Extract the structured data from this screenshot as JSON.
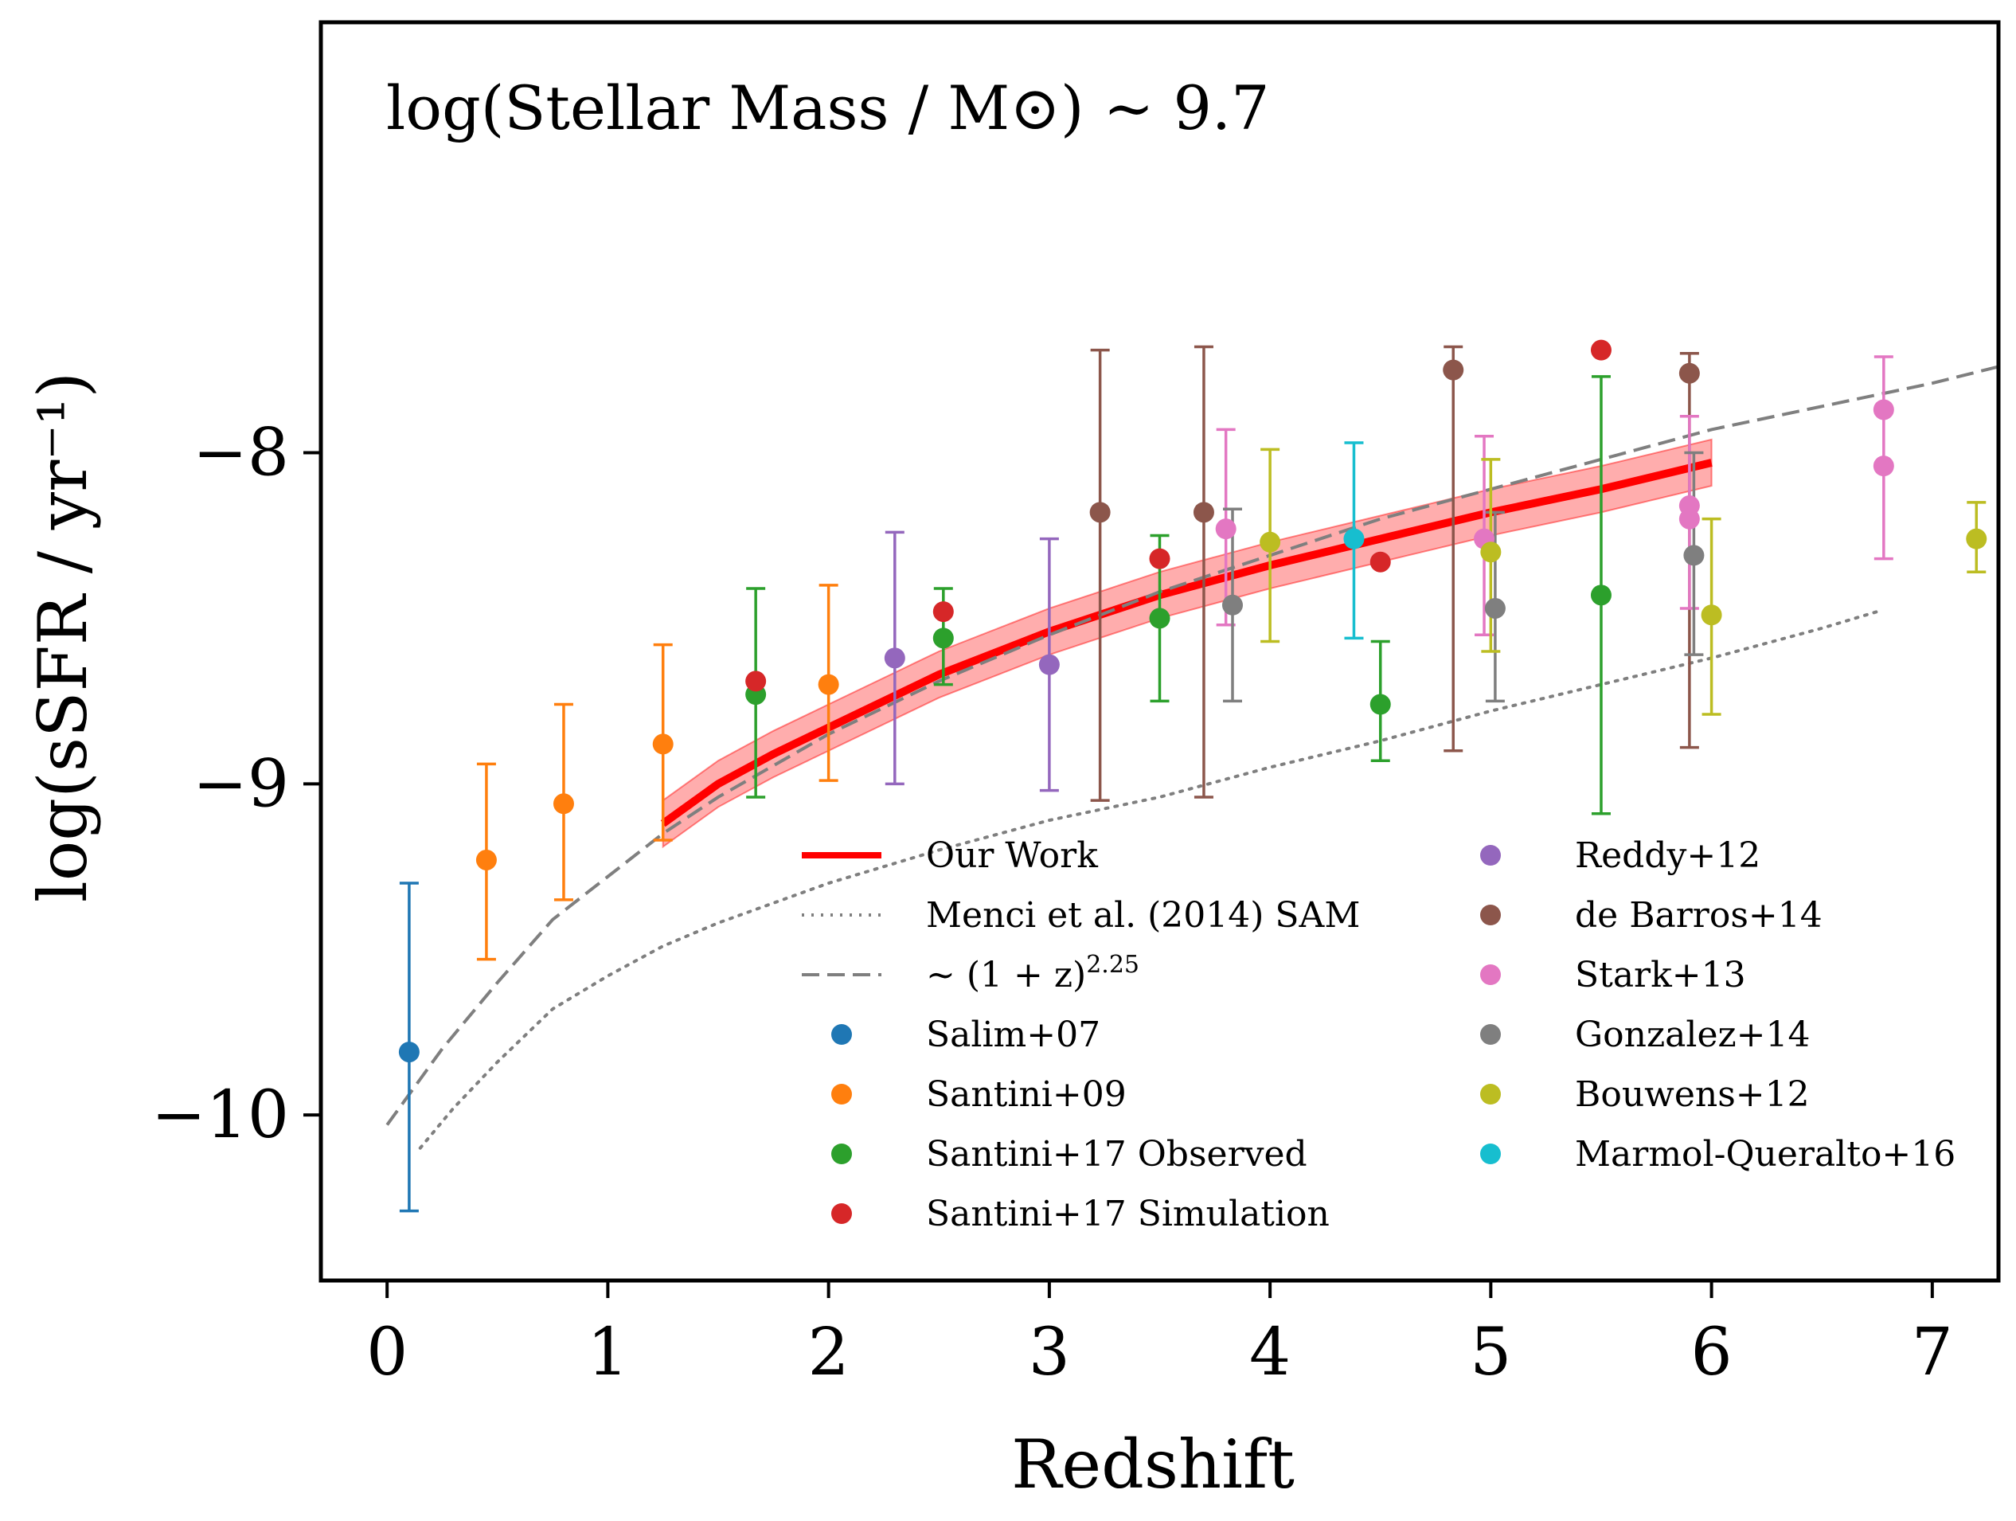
{
  "chart_data": {
    "type": "scatter",
    "title": "",
    "annotation": "log(Stellar Mass / M⊙) ~ 9.7",
    "xlabel": "Redshift",
    "ylabel": "log(sSFR / yr⁻¹)",
    "xlim": [
      -0.3,
      7.3
    ],
    "ylim": [
      -10.5,
      -6.7
    ],
    "xticks": [
      0,
      1,
      2,
      3,
      4,
      5,
      6,
      7
    ],
    "xtick_labels": [
      "0",
      "1",
      "2",
      "3",
      "4",
      "5",
      "6",
      "7"
    ],
    "yticks": [
      -8,
      -9,
      -10
    ],
    "ytick_labels": [
      "−8",
      "−9",
      "−10"
    ],
    "grid": false,
    "legend_placement": "lower right",
    "lines": [
      {
        "name": "Our Work",
        "color": "#ff0000",
        "style": "solid",
        "x": [
          1.25,
          1.5,
          1.75,
          2.0,
          2.5,
          3.0,
          3.5,
          4.0,
          4.5,
          5.0,
          5.5,
          6.0
        ],
        "y": [
          -9.12,
          -9.0,
          -8.91,
          -8.83,
          -8.67,
          -8.54,
          -8.43,
          -8.34,
          -8.26,
          -8.18,
          -8.11,
          -8.03
        ],
        "band": 0.07
      },
      {
        "name": "Menci et al. (2014) SAM",
        "color": "#7f7f7f",
        "style": "dotted",
        "x": [
          0.15,
          0.3,
          0.5,
          0.75,
          1.0,
          1.25,
          1.5,
          2.0,
          2.5,
          3.0,
          3.5,
          4.0,
          4.5,
          5.0,
          5.5,
          6.0,
          6.5,
          6.75
        ],
        "y": [
          -10.1,
          -9.98,
          -9.84,
          -9.68,
          -9.58,
          -9.49,
          -9.42,
          -9.3,
          -9.2,
          -9.11,
          -9.04,
          -8.95,
          -8.87,
          -8.78,
          -8.7,
          -8.62,
          -8.53,
          -8.48
        ]
      },
      {
        "name": "~ (1+z)^2.25",
        "color": "#7f7f7f",
        "style": "dashed",
        "x": [
          0.0,
          0.25,
          0.5,
          0.75,
          1.0,
          1.25,
          1.5,
          2.0,
          2.5,
          3.0,
          3.5,
          4.0,
          4.5,
          5.0,
          5.5,
          6.0,
          6.5,
          7.0,
          7.3
        ],
        "y": [
          -10.03,
          -9.8,
          -9.6,
          -9.41,
          -9.28,
          -9.15,
          -9.04,
          -8.85,
          -8.69,
          -8.55,
          -8.42,
          -8.31,
          -8.2,
          -8.11,
          -8.02,
          -7.93,
          -7.86,
          -7.79,
          -7.74
        ]
      }
    ],
    "series": [
      {
        "name": "Salim+07",
        "color": "#1f77b4",
        "points": [
          {
            "x": 0.1,
            "y": -9.81,
            "lo": -10.29,
            "hi": -9.3
          }
        ]
      },
      {
        "name": "Santini+09",
        "color": "#ff7f0e",
        "points": [
          {
            "x": 0.45,
            "y": -9.23,
            "lo": -9.53,
            "hi": -8.94
          },
          {
            "x": 0.8,
            "y": -9.06,
            "lo": -9.35,
            "hi": -8.76
          },
          {
            "x": 1.25,
            "y": -8.88,
            "lo": -9.17,
            "hi": -8.58
          },
          {
            "x": 2.0,
            "y": -8.7,
            "lo": -8.99,
            "hi": -8.4
          }
        ]
      },
      {
        "name": "Santini+17 Observed",
        "color": "#2ca02c",
        "points": [
          {
            "x": 1.67,
            "y": -8.73,
            "lo": -9.04,
            "hi": -8.41
          },
          {
            "x": 2.52,
            "y": -8.56,
            "lo": -8.7,
            "hi": -8.41
          },
          {
            "x": 3.5,
            "y": -8.5,
            "lo": -8.75,
            "hi": -8.25
          },
          {
            "x": 4.5,
            "y": -8.76,
            "lo": -8.93,
            "hi": -8.57
          },
          {
            "x": 5.5,
            "y": -8.43,
            "lo": -9.09,
            "hi": -7.77
          }
        ]
      },
      {
        "name": "Santini+17 Simulation",
        "color": "#d62728",
        "points": [
          {
            "x": 1.67,
            "y": -8.69
          },
          {
            "x": 2.52,
            "y": -8.48
          },
          {
            "x": 3.5,
            "y": -8.32
          },
          {
            "x": 4.5,
            "y": -8.33
          },
          {
            "x": 5.5,
            "y": -7.69
          }
        ]
      },
      {
        "name": "Reddy+12",
        "color": "#9467bd",
        "points": [
          {
            "x": 2.3,
            "y": -8.62,
            "lo": -9.0,
            "hi": -8.24
          },
          {
            "x": 3.0,
            "y": -8.64,
            "lo": -9.02,
            "hi": -8.26
          }
        ]
      },
      {
        "name": "de Barros+14",
        "color": "#8c564b",
        "points": [
          {
            "x": 3.23,
            "y": -8.18,
            "lo": -9.05,
            "hi": -7.69
          },
          {
            "x": 3.7,
            "y": -8.18,
            "lo": -9.04,
            "hi": -7.68
          },
          {
            "x": 4.83,
            "y": -7.75,
            "lo": -8.9,
            "hi": -7.68
          },
          {
            "x": 5.9,
            "y": -7.76,
            "lo": -8.89,
            "hi": -7.7
          }
        ]
      },
      {
        "name": "Stark+13",
        "color": "#e377c2",
        "points": [
          {
            "x": 3.8,
            "y": -8.23,
            "lo": -8.52,
            "hi": -7.93
          },
          {
            "x": 4.97,
            "y": -8.26,
            "lo": -8.55,
            "hi": -7.95
          },
          {
            "x": 5.9,
            "y": -8.16,
            "lo": -8.47,
            "hi": -7.89
          },
          {
            "x": 5.9,
            "y": -8.2
          },
          {
            "x": 6.78,
            "y": -7.87,
            "lo": -8.32,
            "hi": -7.71
          },
          {
            "x": 6.78,
            "y": -8.04
          }
        ]
      },
      {
        "name": "Gonzalez+14",
        "color": "#7f7f7f",
        "points": [
          {
            "x": 3.83,
            "y": -8.46,
            "lo": -8.75,
            "hi": -8.17
          },
          {
            "x": 5.02,
            "y": -8.47,
            "lo": -8.75,
            "hi": -8.18
          },
          {
            "x": 5.92,
            "y": -8.31,
            "lo": -8.61,
            "hi": -8.0
          }
        ]
      },
      {
        "name": "Bouwens+12",
        "color": "#bcbd22",
        "points": [
          {
            "x": 4.0,
            "y": -8.27,
            "lo": -8.57,
            "hi": -7.99
          },
          {
            "x": 5.0,
            "y": -8.3,
            "lo": -8.6,
            "hi": -8.02
          },
          {
            "x": 6.0,
            "y": -8.49,
            "lo": -8.79,
            "hi": -8.2
          },
          {
            "x": 7.2,
            "y": -8.26,
            "lo": -8.36,
            "hi": -8.15
          }
        ]
      },
      {
        "name": "Marmol-Queralto+16",
        "color": "#17becf",
        "points": [
          {
            "x": 4.38,
            "y": -8.26,
            "lo": -8.56,
            "hi": -7.97
          }
        ]
      }
    ],
    "legend": {
      "col1": [
        {
          "label": "Our Work",
          "kind": "line",
          "color": "#ff0000",
          "style": "solid"
        },
        {
          "label": "Menci et al. (2014) SAM",
          "kind": "line",
          "color": "#7f7f7f",
          "style": "dotted"
        },
        {
          "label": "~ (1 + z)^2.25",
          "kind": "line",
          "color": "#7f7f7f",
          "style": "dashed"
        },
        {
          "label": "Salim+07",
          "kind": "dot",
          "color": "#1f77b4"
        },
        {
          "label": "Santini+09",
          "kind": "dot",
          "color": "#ff7f0e"
        },
        {
          "label": "Santini+17 Observed",
          "kind": "dot",
          "color": "#2ca02c"
        },
        {
          "label": "Santini+17 Simulation",
          "kind": "dot",
          "color": "#d62728"
        }
      ],
      "col2": [
        {
          "label": "Reddy+12",
          "kind": "dot",
          "color": "#9467bd"
        },
        {
          "label": "de Barros+14",
          "kind": "dot",
          "color": "#8c564b"
        },
        {
          "label": "Stark+13",
          "kind": "dot",
          "color": "#e377c2"
        },
        {
          "label": "Gonzalez+14",
          "kind": "dot",
          "color": "#7f7f7f"
        },
        {
          "label": "Bouwens+12",
          "kind": "dot",
          "color": "#bcbd22"
        },
        {
          "label": "Marmol-Queralto+16",
          "kind": "dot",
          "color": "#17becf"
        }
      ]
    }
  }
}
